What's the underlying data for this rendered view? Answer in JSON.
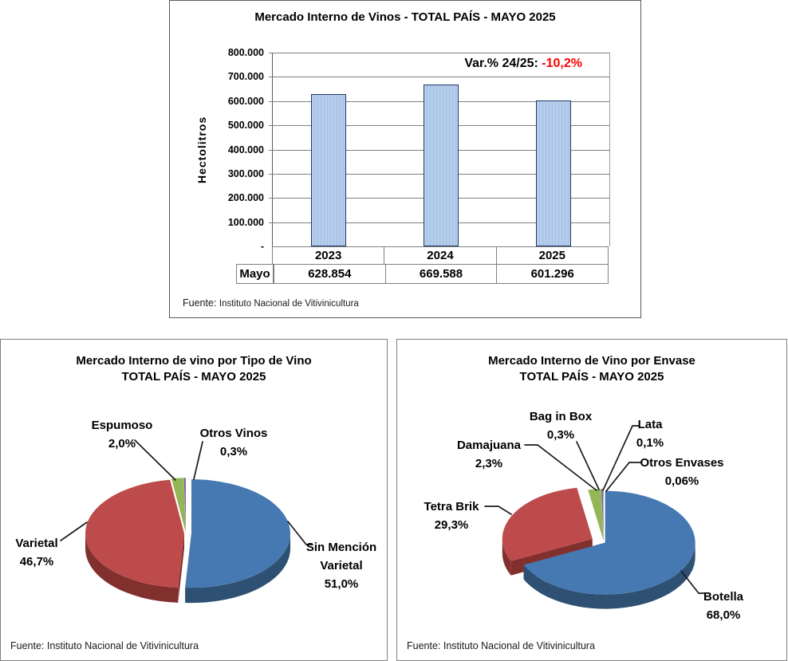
{
  "chart_data": [
    {
      "id": "mercado-interno-vinos-total-pais",
      "type": "bar",
      "title": "Mercado Interno de Vinos - TOTAL PAÍS - MAYO 2025",
      "categories": [
        "2023",
        "2024",
        "2025"
      ],
      "values": [
        628854,
        669588,
        601296
      ],
      "value_labels": [
        "628.854",
        "669.588",
        "601.296"
      ],
      "series_row_label": "Mayo",
      "xlabel": "",
      "ylabel": "Hectolitros",
      "ylim": [
        0,
        800000
      ],
      "y_tick_step": 100000,
      "y_tick_labels": [
        "800.000",
        "700.000",
        "600.000",
        "500.000",
        "400.000",
        "300.000",
        "200.000",
        "100.000",
        "-"
      ],
      "grid": true,
      "annotation": {
        "text": "Var.% 24/25:",
        "value": "-10,2%",
        "value_color": "#FF0000"
      },
      "bar_color": "#B6CDEB",
      "bar_stripe_color": "#A2BFE3",
      "bar_border_color": "#1F3864",
      "source": {
        "prefix": "Fuente:",
        "name": "Instituto Nacional de Vitivinicultura"
      }
    },
    {
      "id": "mercado-interno-por-tipo-de-vino",
      "type": "pie",
      "title": "Mercado Interno de vino por Tipo de Vino",
      "subtitle": "TOTAL PAÍS - MAYO 2025",
      "start_angle": "12-oclock",
      "direction": "clockwise",
      "slices": [
        {
          "label": "Sin Mención Varietal",
          "pct_label": "51,0%",
          "value": 51.0,
          "color": "#4679B2",
          "side_color": "#2E5072",
          "explode": 7
        },
        {
          "label": "Varietal",
          "pct_label": "46,7%",
          "value": 46.7,
          "color": "#BE4B4B",
          "side_color": "#82302E",
          "explode": 2
        },
        {
          "label": "Espumoso",
          "pct_label": "2,0%",
          "value": 2.0,
          "color": "#94B656",
          "side_color": "#6B8C3E",
          "explode": 3
        },
        {
          "label": "Otros Vinos",
          "pct_label": "0,3%",
          "value": 0.3,
          "color": "#8064A2",
          "side_color": "#5E4876",
          "explode": 3
        }
      ],
      "source": {
        "prefix": "Fuente:",
        "name": "Instituto Nacional de Vitivinicultura"
      }
    },
    {
      "id": "mercado-interno-por-envase",
      "type": "pie",
      "title": "Mercado Interno de Vino por Envase",
      "subtitle": "TOTAL PAÍS - MAYO 2025",
      "start_angle": "12-oclock",
      "direction": "clockwise",
      "slices": [
        {
          "label": "Botella",
          "pct_label": "68,0%",
          "value": 68.0,
          "color": "#4679B2",
          "side_color": "#2E5072",
          "explode": 2
        },
        {
          "label": "Tetra Brik",
          "pct_label": "29,3%",
          "value": 29.3,
          "color": "#BE4B4B",
          "side_color": "#82302E",
          "explode": 16
        },
        {
          "label": "Damajuana",
          "pct_label": "2,3%",
          "value": 2.3,
          "color": "#94B656",
          "side_color": "#6B8C3E",
          "explode": 3
        },
        {
          "label": "Bag in Box",
          "pct_label": "0,3%",
          "value": 0.3,
          "color": "#8064A2",
          "side_color": "#5E4876",
          "explode": 3
        },
        {
          "label": "Lata",
          "pct_label": "0,1%",
          "value": 0.1,
          "color": "#4BACC6",
          "side_color": "#317084",
          "explode": 3
        },
        {
          "label": "Otros Envases",
          "pct_label": "0,06%",
          "value": 0.06,
          "color": "#F79646",
          "side_color": "#B36A2D",
          "explode": 3
        }
      ],
      "source": {
        "prefix": "Fuente:",
        "name": "Instituto Nacional de Vitivinicultura"
      }
    }
  ]
}
